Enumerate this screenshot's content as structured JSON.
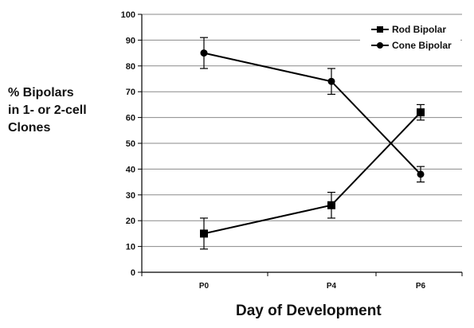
{
  "chart_data": {
    "type": "line",
    "ylabel_lines": [
      "% Bipolars",
      "in 1- or 2-cell",
      "Clones"
    ],
    "xlabel": "Day of Development",
    "categories": [
      "P0",
      "P4",
      "P6"
    ],
    "ylim": [
      0,
      100
    ],
    "yticks": [
      0,
      10,
      20,
      30,
      40,
      50,
      60,
      70,
      80,
      90,
      100
    ],
    "grid": true,
    "legend_position": "top-right",
    "series": [
      {
        "name": "Rod Bipolar",
        "marker": "square",
        "values": [
          15,
          26,
          62
        ],
        "error": [
          6,
          5,
          3
        ]
      },
      {
        "name": "Cone Bipolar",
        "marker": "circle",
        "values": [
          85,
          74,
          38
        ],
        "error": [
          6,
          5,
          3
        ]
      }
    ]
  }
}
